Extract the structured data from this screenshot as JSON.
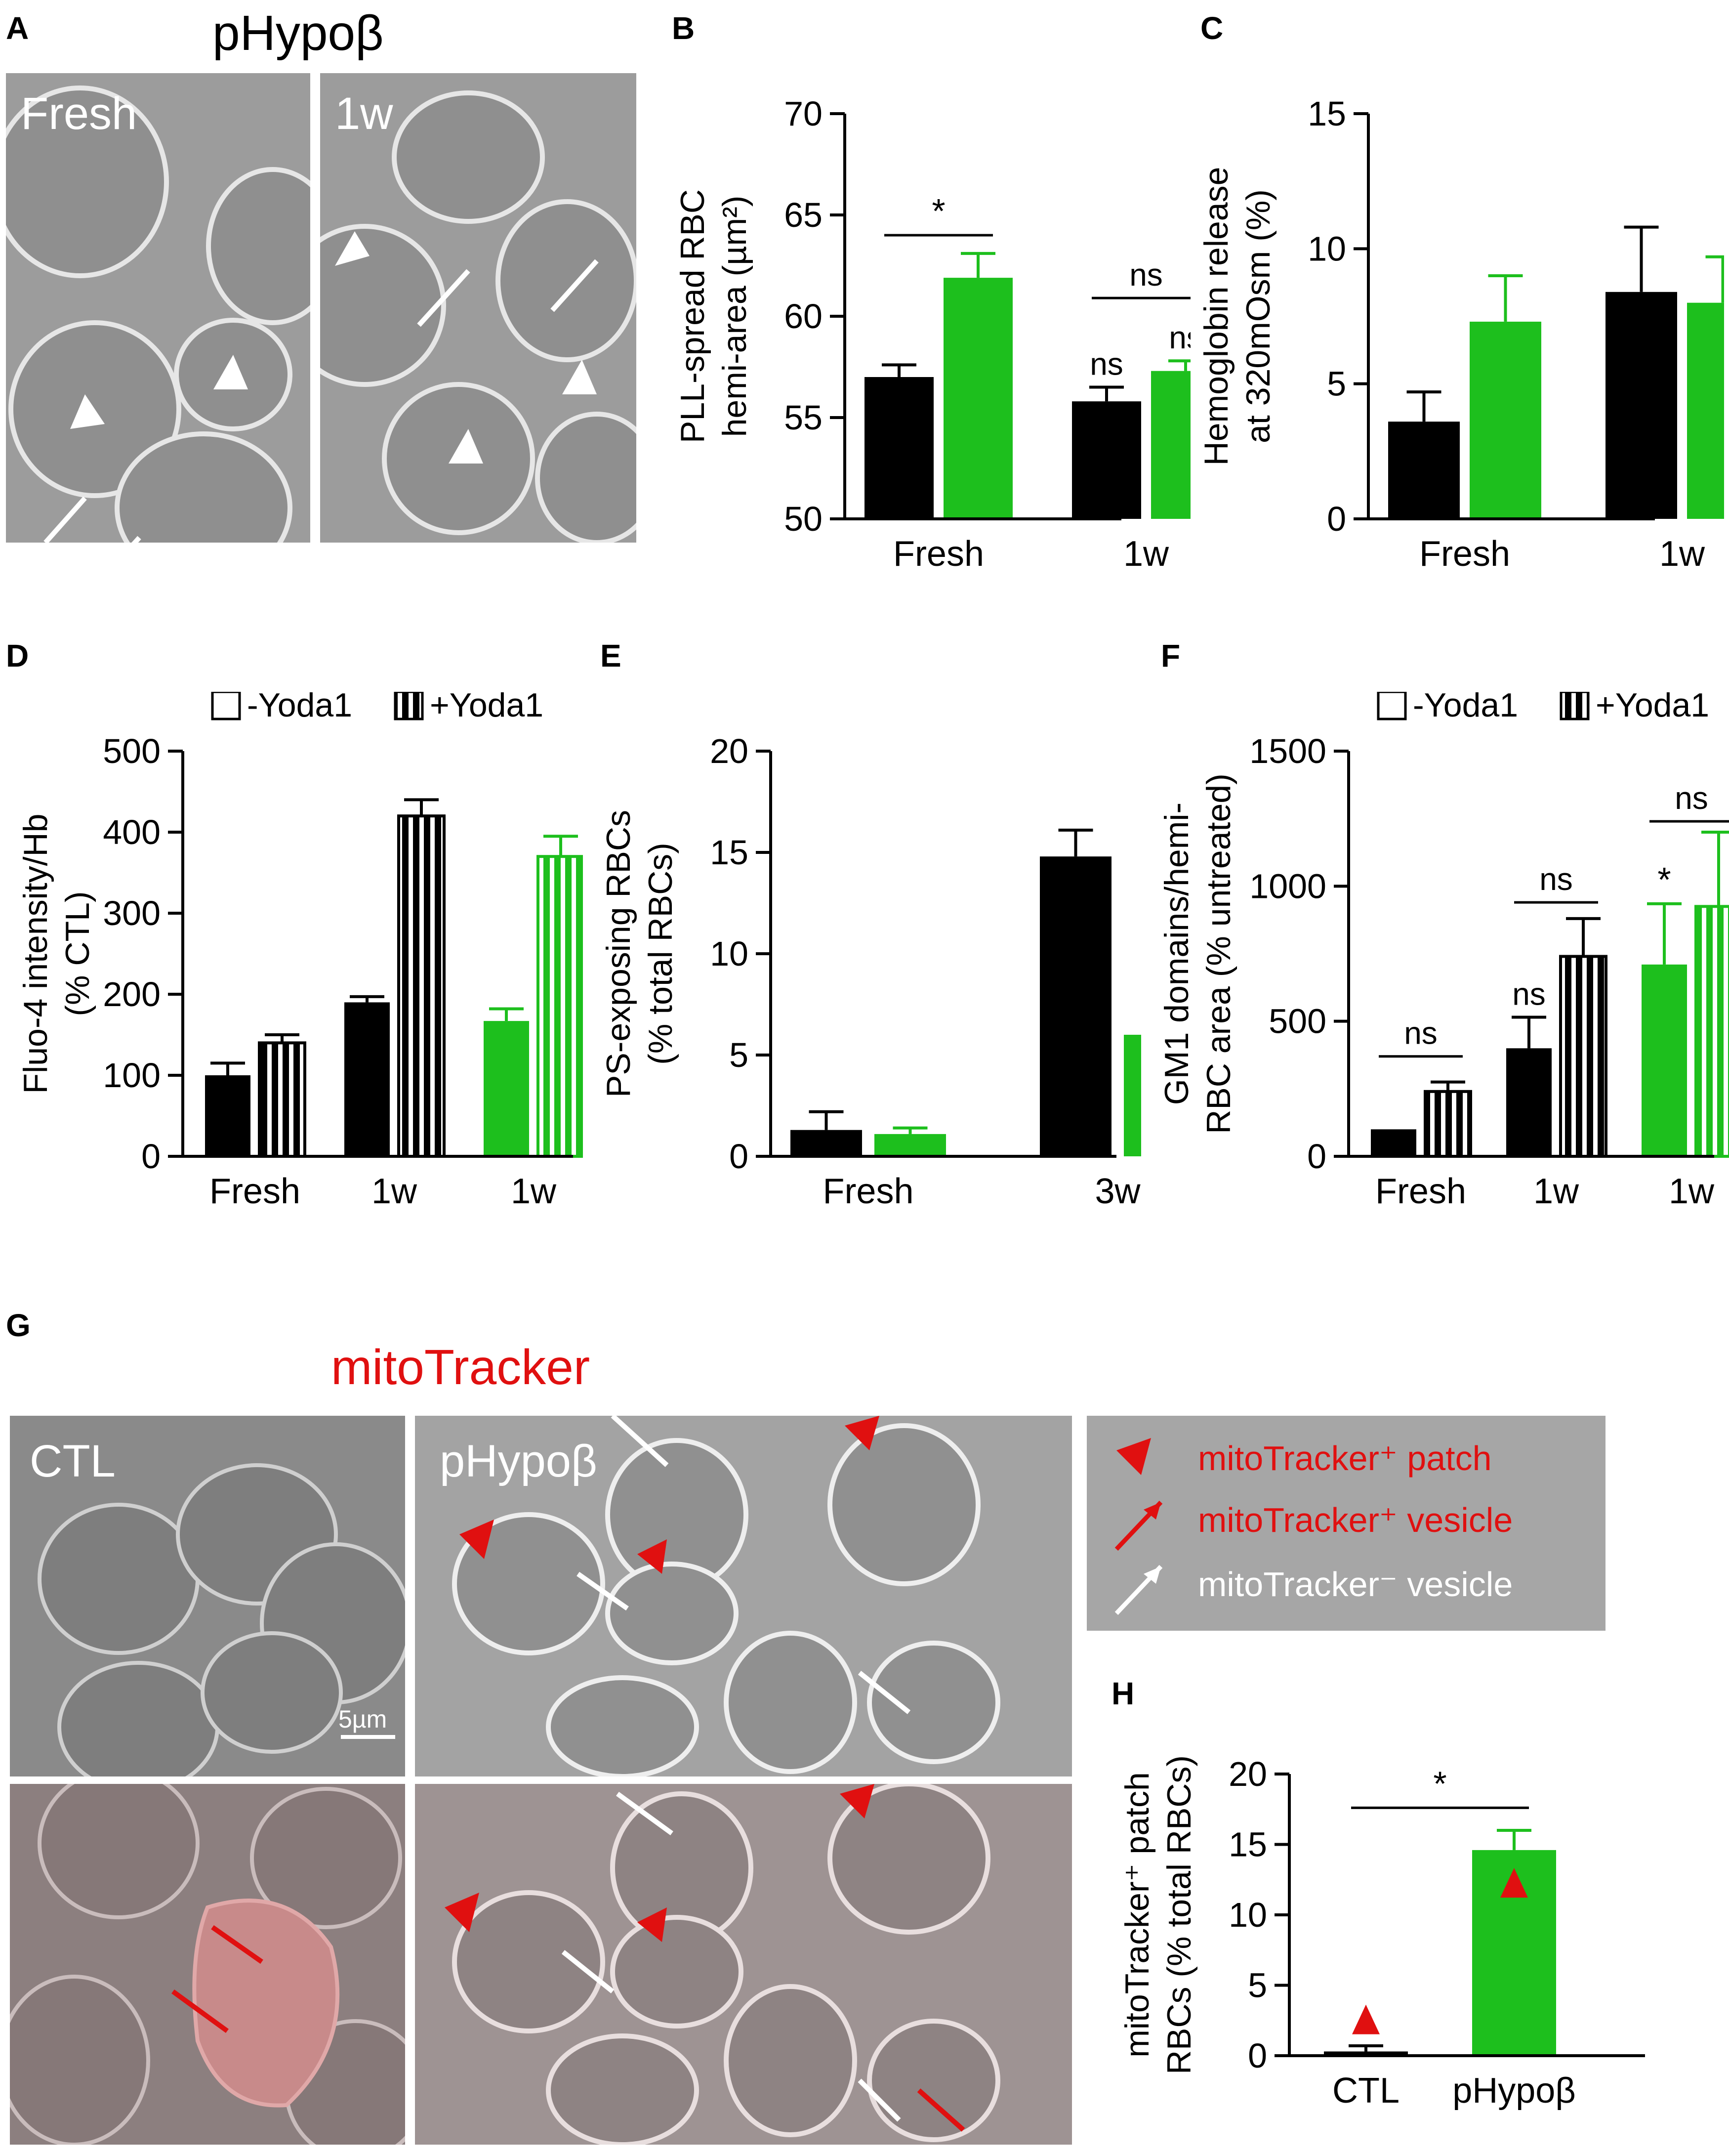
{
  "panels": {
    "A": {
      "letter": "A",
      "title": "pHypoβ",
      "image_labels": [
        "Fresh",
        "1w"
      ]
    },
    "B": {
      "letter": "B"
    },
    "C": {
      "letter": "C"
    },
    "D": {
      "letter": "D"
    },
    "E": {
      "letter": "E"
    },
    "F": {
      "letter": "F"
    },
    "G": {
      "letter": "G",
      "title": "mitoTracker",
      "image_labels": [
        "CTL",
        "pHypoβ"
      ],
      "scalebar": "5µm",
      "legend": [
        "mitoTracker⁺ patch",
        "mitoTracker⁺ vesicle",
        "mitoTracker⁻ vesicle"
      ]
    },
    "H": {
      "letter": "H"
    }
  },
  "colors": {
    "black": "#000000",
    "green": "#1dbf1d",
    "red": "#e01010",
    "white": "#ffffff"
  },
  "chart_data": [
    {
      "id": "B",
      "type": "bar",
      "ylabel_lines": [
        "PLL-spread RBC",
        "hemi-area (µm²)"
      ],
      "ylim": [
        50,
        70
      ],
      "yticks": [
        50,
        55,
        60,
        65,
        70
      ],
      "group_labels": [
        "Fresh",
        "1w"
      ],
      "bars": [
        {
          "group": 0,
          "color": "black",
          "value": 57.0,
          "err": 0.6
        },
        {
          "group": 0,
          "color": "green",
          "value": 61.9,
          "err": 1.2
        },
        {
          "group": 1,
          "color": "black",
          "value": 55.8,
          "err": 0.7,
          "label": "ns"
        },
        {
          "group": 1,
          "color": "green",
          "value": 57.3,
          "err": 0.5,
          "label": "ns"
        }
      ],
      "brackets": [
        {
          "from": 0,
          "to": 1,
          "y": 64.0,
          "label": "*"
        },
        {
          "from": 2,
          "to": 3,
          "y": 60.9,
          "label": "ns"
        }
      ]
    },
    {
      "id": "C",
      "type": "bar",
      "ylabel_lines": [
        "Hemoglobin release",
        "at 320mOsm (%)"
      ],
      "ylim": [
        0,
        15
      ],
      "yticks": [
        0,
        5,
        10,
        15
      ],
      "group_labels": [
        "Fresh",
        "1w"
      ],
      "bars": [
        {
          "group": 0,
          "color": "black",
          "value": 3.6,
          "err": 1.1
        },
        {
          "group": 0,
          "color": "green",
          "value": 7.3,
          "err": 1.7
        },
        {
          "group": 1,
          "color": "black",
          "value": 8.4,
          "err": 2.4
        },
        {
          "group": 1,
          "color": "green",
          "value": 8.0,
          "err": 1.7
        }
      ],
      "brackets": []
    },
    {
      "id": "D",
      "type": "bar",
      "ylabel_lines": [
        "Fluo-4 intensity/Hb",
        "(% CTL)"
      ],
      "ylim": [
        0,
        500
      ],
      "yticks": [
        0,
        100,
        200,
        300,
        400,
        500
      ],
      "legend": [
        "-Yoda1",
        "+Yoda1"
      ],
      "group_labels": [
        "Fresh",
        "1w",
        "1w"
      ],
      "bars": [
        {
          "group": 0,
          "color": "black",
          "value": 100,
          "err": 15
        },
        {
          "group": 0,
          "color": "black",
          "value": 140,
          "err": 10,
          "striped": true
        },
        {
          "group": 1,
          "color": "black",
          "value": 190,
          "err": 7
        },
        {
          "group": 1,
          "color": "black",
          "value": 420,
          "err": 20,
          "striped": true
        },
        {
          "group": 2,
          "color": "green",
          "value": 167,
          "err": 15
        },
        {
          "group": 2,
          "color": "green",
          "value": 370,
          "err": 25,
          "striped": true
        }
      ],
      "brackets": []
    },
    {
      "id": "E",
      "type": "bar",
      "ylabel_lines": [
        "PS-exposing RBCs",
        "(% total RBCs)"
      ],
      "ylim": [
        0,
        20
      ],
      "yticks": [
        0,
        5,
        10,
        15,
        20
      ],
      "group_labels": [
        "Fresh",
        "3w"
      ],
      "bars": [
        {
          "group": 0,
          "color": "black",
          "value": 1.3,
          "err": 0.9
        },
        {
          "group": 0,
          "color": "green",
          "value": 1.1,
          "err": 0.3
        },
        {
          "group": 1,
          "color": "black",
          "value": 14.8,
          "err": 1.3
        },
        {
          "group": 1,
          "color": "green",
          "value": 6.0,
          "err": 0.1
        }
      ],
      "brackets": []
    },
    {
      "id": "F",
      "type": "bar",
      "ylabel_lines": [
        "GM1 domains/hemi-",
        "RBC area (% untreated)"
      ],
      "ylim": [
        0,
        1500
      ],
      "yticks": [
        0,
        500,
        1000,
        1500
      ],
      "legend": [
        "-Yoda1",
        "+Yoda1"
      ],
      "group_labels": [
        "Fresh",
        "1w",
        "1w"
      ],
      "bars": [
        {
          "group": 0,
          "color": "black",
          "value": 100,
          "err": 0
        },
        {
          "group": 0,
          "color": "black",
          "value": 240,
          "err": 35,
          "striped": true
        },
        {
          "group": 1,
          "color": "black",
          "value": 400,
          "err": 115,
          "label": "ns"
        },
        {
          "group": 1,
          "color": "black",
          "value": 740,
          "err": 140,
          "striped": true
        },
        {
          "group": 2,
          "color": "green",
          "value": 710,
          "err": 225,
          "label": "*"
        },
        {
          "group": 2,
          "color": "green",
          "value": 925,
          "err": 275,
          "striped": true
        }
      ],
      "brackets": [
        {
          "from": 0,
          "to": 1,
          "y": 370,
          "label": "ns"
        },
        {
          "from": 2,
          "to": 3,
          "y": 940,
          "label": "ns"
        },
        {
          "from": 4,
          "to": 5,
          "y": 1240,
          "label": "ns"
        }
      ]
    },
    {
      "id": "H",
      "type": "bar",
      "ylabel_lines": [
        "mitoTracker⁺ patch",
        "RBCs (% total RBCs)"
      ],
      "ylim": [
        0,
        20
      ],
      "yticks": [
        0,
        5,
        10,
        15,
        20
      ],
      "group_labels": [
        "CTL",
        "pHypoβ"
      ],
      "bars": [
        {
          "group": 0,
          "color": "black",
          "value": 0.3,
          "err": 0.4
        },
        {
          "group": 1,
          "color": "green",
          "value": 14.6,
          "err": 1.4
        }
      ],
      "markers": [
        {
          "bar": 0,
          "value": 2.4
        },
        {
          "bar": 1,
          "value": 12.1
        }
      ],
      "brackets": [
        {
          "from": 0,
          "to": 1,
          "y": 17.6,
          "label": "*"
        }
      ]
    }
  ]
}
